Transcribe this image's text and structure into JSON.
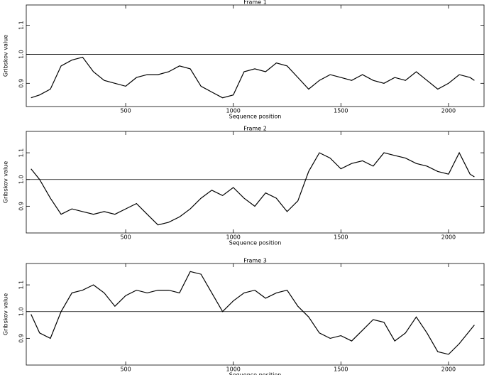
{
  "chart_data": [
    {
      "type": "line",
      "title": "Frame 1",
      "x_label": "Sequence position",
      "y_label": "Gribskov value",
      "xlim": [
        38,
        2165
      ],
      "xticks": [
        500,
        1000,
        1500,
        2000
      ],
      "ylim": [
        0.82,
        1.17
      ],
      "yticks": [
        0.9,
        {
          "value": 1,
          "label": "1.0"
        },
        1.1
      ],
      "reference_line": 1,
      "x": [
        60,
        100,
        150,
        200,
        250,
        300,
        350,
        400,
        450,
        500,
        550,
        600,
        650,
        700,
        750,
        800,
        850,
        900,
        950,
        1000,
        1050,
        1100,
        1150,
        1200,
        1250,
        1300,
        1350,
        1400,
        1450,
        1500,
        1550,
        1600,
        1650,
        1700,
        1750,
        1800,
        1850,
        1900,
        1950,
        2000,
        2050,
        2100,
        2120
      ],
      "series": [
        {
          "color": "#000000",
          "values": [
            0.85,
            0.86,
            0.88,
            0.96,
            0.98,
            0.99,
            0.94,
            0.91,
            0.9,
            0.89,
            0.92,
            0.93,
            0.93,
            0.94,
            0.96,
            0.95,
            0.89,
            0.87,
            0.85,
            0.86,
            0.94,
            0.95,
            0.94,
            0.97,
            0.96,
            0.92,
            0.88,
            0.91,
            0.93,
            0.92,
            0.91,
            0.93,
            0.91,
            0.9,
            0.92,
            0.91,
            0.94,
            0.91,
            0.88,
            0.9,
            0.93,
            0.92,
            0.91
          ]
        }
      ]
    },
    {
      "type": "line",
      "title": "Frame 2",
      "x_label": "Sequence position",
      "y_label": "Gribskov value",
      "xlim": [
        38,
        2165
      ],
      "xticks": [
        500,
        1000,
        1500,
        2000
      ],
      "ylim": [
        0.8,
        1.18
      ],
      "yticks": [
        0.9,
        {
          "value": 1,
          "label": "1.0"
        },
        1.1
      ],
      "reference_line": 1,
      "x": [
        60,
        100,
        150,
        200,
        250,
        300,
        350,
        400,
        450,
        500,
        550,
        600,
        650,
        700,
        750,
        800,
        850,
        900,
        950,
        1000,
        1050,
        1100,
        1150,
        1200,
        1250,
        1300,
        1350,
        1400,
        1450,
        1500,
        1550,
        1600,
        1650,
        1700,
        1750,
        1800,
        1850,
        1900,
        1950,
        2000,
        2050,
        2100,
        2120
      ],
      "series": [
        {
          "color": "#000000",
          "values": [
            1.04,
            1.0,
            0.93,
            0.87,
            0.89,
            0.88,
            0.87,
            0.88,
            0.87,
            0.89,
            0.91,
            0.87,
            0.83,
            0.84,
            0.86,
            0.89,
            0.93,
            0.96,
            0.94,
            0.97,
            0.93,
            0.9,
            0.95,
            0.93,
            0.88,
            0.92,
            1.03,
            1.1,
            1.08,
            1.04,
            1.06,
            1.07,
            1.05,
            1.1,
            1.09,
            1.08,
            1.06,
            1.05,
            1.03,
            1.02,
            1.1,
            1.02,
            1.01
          ]
        }
      ]
    },
    {
      "type": "line",
      "title": "Frame 3",
      "x_label": "Sequence position",
      "y_label": "Gribskov value",
      "xlim": [
        38,
        2165
      ],
      "xticks": [
        500,
        1000,
        1500,
        2000
      ],
      "ylim": [
        0.8,
        1.18
      ],
      "yticks": [
        0.9,
        {
          "value": 1,
          "label": "1.0"
        },
        1.1
      ],
      "reference_line": 1,
      "x": [
        60,
        100,
        150,
        200,
        250,
        300,
        350,
        400,
        450,
        500,
        550,
        600,
        650,
        700,
        750,
        800,
        850,
        900,
        950,
        1000,
        1050,
        1100,
        1150,
        1200,
        1250,
        1300,
        1350,
        1400,
        1450,
        1500,
        1550,
        1600,
        1650,
        1700,
        1750,
        1800,
        1850,
        1900,
        1950,
        2000,
        2050,
        2100,
        2120
      ],
      "series": [
        {
          "color": "#000000",
          "values": [
            0.99,
            0.92,
            0.9,
            1.0,
            1.07,
            1.08,
            1.1,
            1.07,
            1.02,
            1.06,
            1.08,
            1.07,
            1.08,
            1.08,
            1.07,
            1.15,
            1.14,
            1.07,
            1.0,
            1.04,
            1.07,
            1.08,
            1.05,
            1.07,
            1.08,
            1.02,
            0.98,
            0.92,
            0.9,
            0.91,
            0.89,
            0.93,
            0.97,
            0.96,
            0.89,
            0.92,
            0.98,
            0.92,
            0.85,
            0.84,
            0.88,
            0.93,
            0.95
          ]
        }
      ]
    }
  ]
}
